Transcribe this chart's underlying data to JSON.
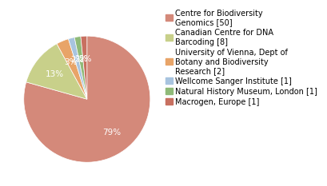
{
  "labels": [
    "Centre for Biodiversity\nGenomics [50]",
    "Canadian Centre for DNA\nBarcoding [8]",
    "University of Vienna, Dept of\nBotany and Biodiversity\nResearch [2]",
    "Wellcome Sanger Institute [1]",
    "Natural History Museum, London [1]",
    "Macrogen, Europe [1]"
  ],
  "values": [
    50,
    8,
    2,
    1,
    1,
    1
  ],
  "colors": [
    "#d4897a",
    "#c8d08a",
    "#e8a468",
    "#a8c4df",
    "#8fba78",
    "#c87060"
  ],
  "startangle": 90,
  "legend_fontsize": 7.0,
  "pct_threshold": 1.5
}
